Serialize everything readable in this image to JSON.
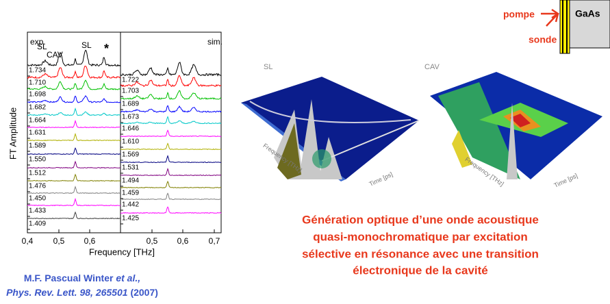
{
  "plot": {
    "y_axis_label": "FT Amplitude",
    "x_axis_label": "Frequency [THz]",
    "exp_label": "exp.",
    "sim_label": "sim.",
    "peak_labels": [
      "SL",
      "CAV",
      "SL",
      "*"
    ],
    "exp_traces": [
      "1.734",
      "1.710",
      "1.698",
      "1.682",
      "1.664",
      "1.631",
      "1.589",
      "1.550",
      "1.512",
      "1.476",
      "1.450",
      "1.433",
      "1.409"
    ],
    "sim_traces": [
      "1.722",
      "1.703",
      "1.689",
      "1.673",
      "1.646",
      "1.610",
      "1.569",
      "1.531",
      "1.494",
      "1.459",
      "1.442",
      "1.425"
    ],
    "exp_xticks": [
      "0,4",
      "0,5",
      "0,6"
    ],
    "sim_xticks": [
      "0,5",
      "0,6",
      "0,7"
    ]
  },
  "images": [
    {
      "label": "SL",
      "axis_labels": [
        "Frequency [THz]",
        "Time [ps]"
      ]
    },
    {
      "label": "CAV",
      "axis_labels": [
        "Frequency [THz]",
        "Time [ps]"
      ]
    }
  ],
  "setup": {
    "pump": "pompe",
    "probe": "sonde",
    "sample": "GaAs"
  },
  "caption": {
    "lines": [
      "Génération optique d’une onde acoustique",
      "quasi-monochromatique par excitation",
      "sélective en résonance avec une transition",
      "électronique de la cavité"
    ]
  },
  "citation": {
    "authors": "M.F. Pascual Winter",
    "etal": "et al.,",
    "journal": "Phys. Rev. Lett. 98, 265501",
    "year": "(2007)"
  }
}
